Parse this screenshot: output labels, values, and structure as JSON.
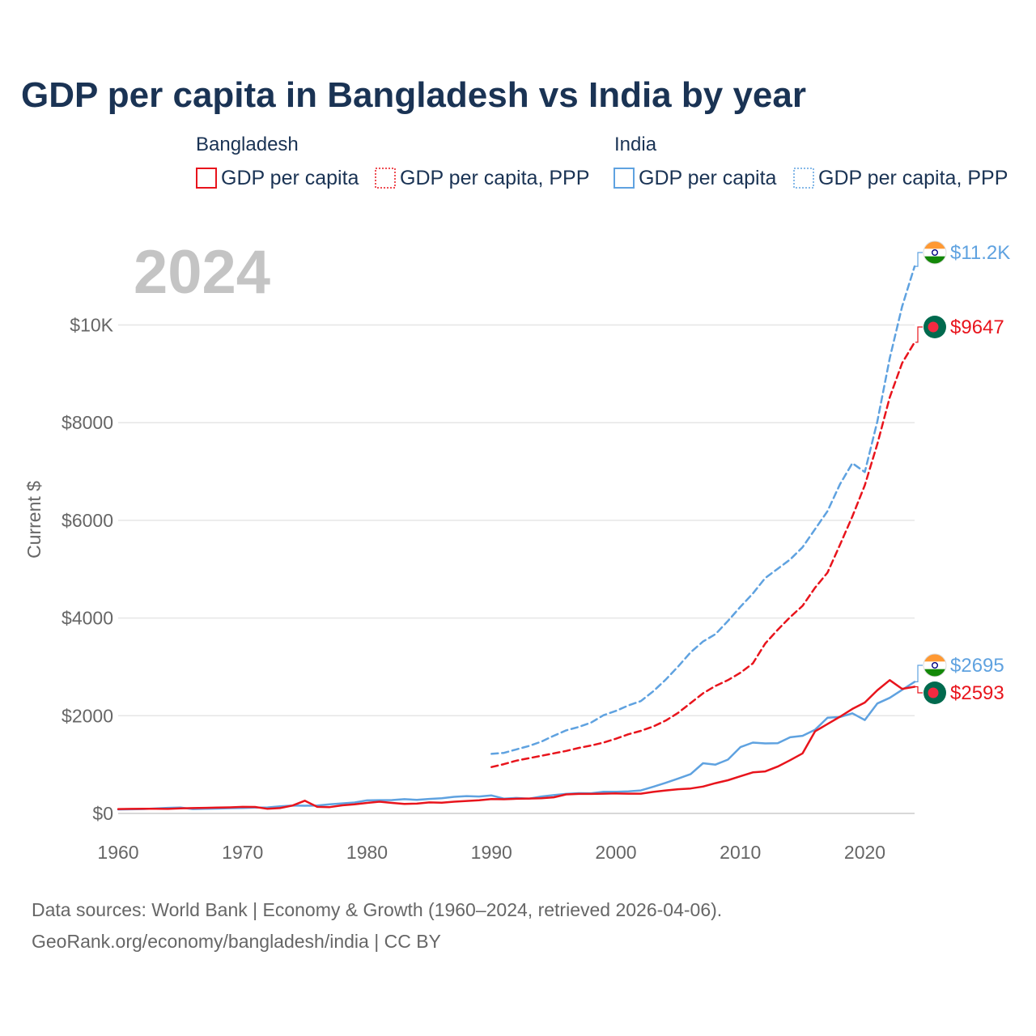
{
  "chart_data": {
    "type": "line",
    "title": "GDP per capita in Bangladesh vs India by year",
    "ylabel": "Current $",
    "xlabel": "",
    "xlim": [
      1960,
      2024
    ],
    "ylim": [
      0,
      11600
    ],
    "x_ticks": [
      1960,
      1970,
      1980,
      1990,
      2000,
      2010,
      2020
    ],
    "x_tick_labels": [
      "1960",
      "1970",
      "1980",
      "1990",
      "2000",
      "2010",
      "2020"
    ],
    "y_ticks": [
      0,
      2000,
      4000,
      6000,
      8000,
      10000
    ],
    "y_tick_labels": [
      "$0",
      "$2000",
      "$4000",
      "$6000",
      "$8000",
      "$10K"
    ],
    "year_label": "2024",
    "legend_groups": [
      {
        "name": "Bangladesh",
        "items": [
          "GDP per capita",
          "GDP per capita, PPP"
        ]
      },
      {
        "name": "India",
        "items": [
          "GDP per capita",
          "GDP per capita, PPP"
        ]
      }
    ],
    "colors": {
      "bangladesh": "#e8141c",
      "india": "#5fa2e0"
    },
    "series": [
      {
        "name": "Bangladesh GDP per capita",
        "country": "bangladesh",
        "style": "solid",
        "end_label": "$2593",
        "x": [
          1960,
          1961,
          1962,
          1963,
          1964,
          1965,
          1966,
          1967,
          1968,
          1969,
          1970,
          1971,
          1972,
          1973,
          1974,
          1975,
          1976,
          1977,
          1978,
          1979,
          1980,
          1981,
          1982,
          1983,
          1984,
          1985,
          1986,
          1987,
          1988,
          1989,
          1990,
          1991,
          1992,
          1993,
          1994,
          1995,
          1996,
          1997,
          1998,
          1999,
          2000,
          2001,
          2002,
          2003,
          2004,
          2005,
          2006,
          2007,
          2008,
          2009,
          2010,
          2011,
          2012,
          2013,
          2014,
          2015,
          2016,
          2017,
          2018,
          2019,
          2020,
          2021,
          2022,
          2023,
          2024
        ],
        "values": [
          89,
          92,
          95,
          95,
          93,
          105,
          110,
          115,
          120,
          125,
          135,
          132,
          95,
          110,
          160,
          260,
          135,
          130,
          165,
          185,
          215,
          240,
          215,
          195,
          200,
          225,
          220,
          240,
          255,
          270,
          295,
          290,
          300,
          305,
          310,
          330,
          390,
          400,
          400,
          405,
          410,
          405,
          405,
          440,
          470,
          495,
          510,
          550,
          620,
          680,
          760,
          840,
          860,
          960,
          1090,
          1230,
          1680,
          1830,
          1980,
          2140,
          2270,
          2520,
          2730,
          2550,
          2593
        ]
      },
      {
        "name": "Bangladesh GDP per capita, PPP",
        "country": "bangladesh",
        "style": "dashed",
        "end_label": "$9647",
        "x": [
          1990,
          1991,
          1992,
          1993,
          1994,
          1995,
          1996,
          1997,
          1998,
          1999,
          2000,
          2001,
          2002,
          2003,
          2004,
          2005,
          2006,
          2007,
          2008,
          2009,
          2010,
          2011,
          2012,
          2013,
          2014,
          2015,
          2016,
          2017,
          2018,
          2019,
          2020,
          2021,
          2022,
          2023,
          2024
        ],
        "values": [
          950,
          1010,
          1080,
          1130,
          1180,
          1230,
          1280,
          1340,
          1390,
          1450,
          1530,
          1620,
          1690,
          1780,
          1900,
          2060,
          2260,
          2460,
          2610,
          2730,
          2880,
          3070,
          3480,
          3760,
          4020,
          4250,
          4620,
          4930,
          5500,
          6080,
          6720,
          7560,
          8520,
          9220,
          9647
        ]
      },
      {
        "name": "India GDP per capita",
        "country": "india",
        "style": "solid",
        "end_label": "$2695",
        "x": [
          1960,
          1961,
          1962,
          1963,
          1964,
          1965,
          1966,
          1967,
          1968,
          1969,
          1970,
          1971,
          1972,
          1973,
          1974,
          1975,
          1976,
          1977,
          1978,
          1979,
          1980,
          1981,
          1982,
          1983,
          1984,
          1985,
          1986,
          1987,
          1988,
          1989,
          1990,
          1991,
          1992,
          1993,
          1994,
          1995,
          1996,
          1997,
          1998,
          1999,
          2000,
          2001,
          2002,
          2003,
          2004,
          2005,
          2006,
          2007,
          2008,
          2009,
          2010,
          2011,
          2012,
          2013,
          2014,
          2015,
          2016,
          2017,
          2018,
          2019,
          2020,
          2021,
          2022,
          2023,
          2024
        ],
        "values": [
          82,
          85,
          89,
          101,
          115,
          119,
          90,
          96,
          100,
          107,
          112,
          119,
          123,
          144,
          163,
          157,
          160,
          186,
          206,
          224,
          267,
          271,
          274,
          292,
          278,
          297,
          310,
          340,
          354,
          346,
          368,
          303,
          317,
          301,
          346,
          374,
          399,
          415,
          413,
          442,
          443,
          451,
          470,
          546,
          627,
          714,
          806,
          1028,
          999,
          1102,
          1358,
          1450,
          1434,
          1438,
          1560,
          1590,
          1714,
          1958,
          1974,
          2050,
          1913,
          2250,
          2366,
          2530,
          2695
        ]
      },
      {
        "name": "India GDP per capita, PPP",
        "country": "india",
        "style": "dashed",
        "end_label": "$11.2K",
        "x": [
          1990,
          1991,
          1992,
          1993,
          1994,
          1995,
          1996,
          1997,
          1998,
          1999,
          2000,
          2001,
          2002,
          2003,
          2004,
          2005,
          2006,
          2007,
          2008,
          2009,
          2010,
          2011,
          2012,
          2013,
          2014,
          2015,
          2016,
          2017,
          2018,
          2019,
          2020,
          2021,
          2022,
          2023,
          2024
        ],
        "values": [
          1220,
          1240,
          1310,
          1380,
          1470,
          1590,
          1700,
          1770,
          1860,
          2010,
          2100,
          2210,
          2300,
          2500,
          2740,
          3010,
          3300,
          3520,
          3670,
          3940,
          4230,
          4500,
          4820,
          5010,
          5200,
          5450,
          5820,
          6190,
          6740,
          7170,
          6990,
          8020,
          9320,
          10380,
          11200
        ]
      }
    ]
  },
  "footer": {
    "source_line": "Data sources: World Bank | Economy & Growth (1960–2024, retrieved 2026-04-06).",
    "url_line": "GeoRank.org/economy/bangladesh/india | CC BY"
  }
}
